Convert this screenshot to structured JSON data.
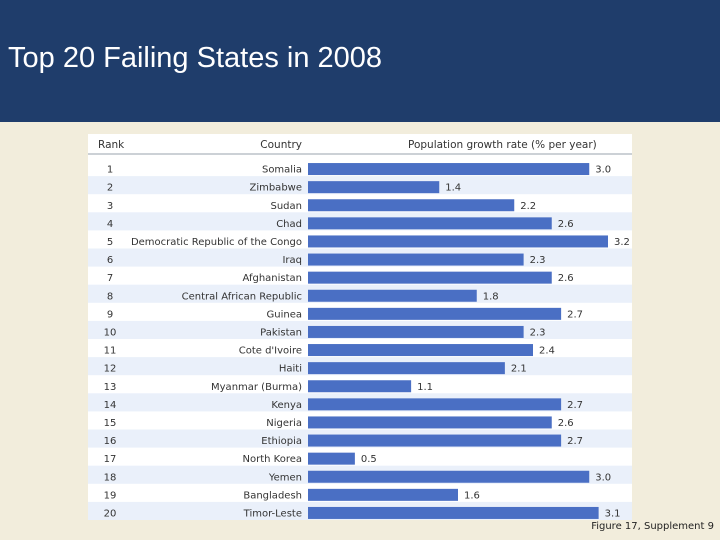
{
  "slide": {
    "title": "Top 20 Failing States in 2008",
    "caption": "Figure 17, Supplement 9"
  },
  "colors": {
    "header_bg": "#1f3d6b",
    "page_bg": "#f2eddc",
    "bar": "#4a6fc4",
    "row_stripe": "#eaf0fa"
  },
  "chart_data": {
    "type": "bar",
    "orientation": "horizontal",
    "columns": [
      "Rank",
      "Country",
      "Population growth rate (% per year)"
    ],
    "ranks": [
      "1",
      "2",
      "3",
      "4",
      "5",
      "6",
      "7",
      "8",
      "9",
      "10",
      "11",
      "12",
      "13",
      "14",
      "15",
      "16",
      "17",
      "18",
      "19",
      "20"
    ],
    "categories": [
      "Somalia",
      "Zimbabwe",
      "Sudan",
      "Chad",
      "Democratic Republic of the Congo",
      "Iraq",
      "Afghanistan",
      "Central African Republic",
      "Guinea",
      "Pakistan",
      "Cote d'Ivoire",
      "Haiti",
      "Myanmar (Burma)",
      "Kenya",
      "Nigeria",
      "Ethiopia",
      "North Korea",
      "Yemen",
      "Bangladesh",
      "Timor-Leste"
    ],
    "values": [
      3.0,
      1.4,
      2.2,
      2.6,
      3.2,
      2.3,
      2.6,
      1.8,
      2.7,
      2.3,
      2.4,
      2.1,
      1.1,
      2.7,
      2.6,
      2.7,
      0.5,
      3.0,
      1.6,
      3.1
    ],
    "value_labels": [
      "3.0",
      "1.4",
      "2.2",
      "2.6",
      "3.2",
      "2.3",
      "2.6",
      "1.8",
      "2.7",
      "2.3",
      "2.4",
      "2.1",
      "1.1",
      "2.7",
      "2.6",
      "2.7",
      "0.5",
      "3.0",
      "1.6",
      "3.1"
    ],
    "xlim": [
      0,
      3.2
    ],
    "xlabel": "Population growth rate (% per year)",
    "grid": false
  }
}
